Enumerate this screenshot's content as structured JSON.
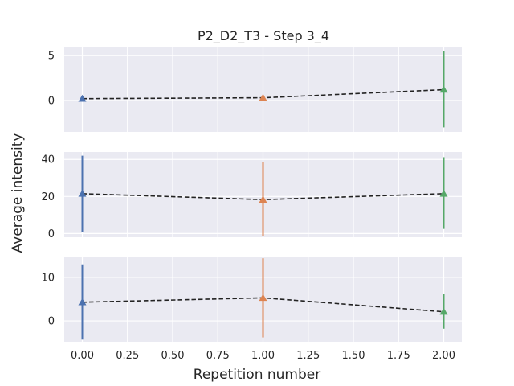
{
  "chart_data": {
    "type": "line",
    "title": "P2_D2_T3 - Step 3_4",
    "xlabel": "Repetition number",
    "ylabel": "Average intensity",
    "xlim": [
      -0.1,
      2.1
    ],
    "x_ticks": [
      "0.00",
      "0.25",
      "0.50",
      "0.75",
      "1.00",
      "1.25",
      "1.50",
      "1.75",
      "2.00"
    ],
    "x_tick_values": [
      0,
      0.25,
      0.5,
      0.75,
      1.0,
      1.25,
      1.5,
      1.75,
      2.0
    ],
    "colors": [
      "#4c72b0",
      "#dd8452",
      "#55a868"
    ],
    "line_style": "black dashed",
    "marker": "triangle-up",
    "grid": true,
    "panels": [
      {
        "ylim": [
          -3.5,
          6
        ],
        "y_ticks": [
          0,
          5
        ],
        "x": [
          0,
          1,
          2
        ],
        "y": [
          0.2,
          0.3,
          1.2
        ],
        "err_low": [
          0.1,
          0.0,
          -3.0
        ],
        "err_high": [
          0.3,
          0.6,
          5.5
        ]
      },
      {
        "ylim": [
          -2,
          44
        ],
        "y_ticks": [
          0,
          20,
          40
        ],
        "x": [
          0,
          1,
          2
        ],
        "y": [
          21.5,
          18.3,
          21.5
        ],
        "err_low": [
          1.0,
          -1.5,
          2.5
        ],
        "err_high": [
          42,
          38.5,
          41.2
        ]
      },
      {
        "ylim": [
          -4.8,
          14.8
        ],
        "y_ticks": [
          0,
          10
        ],
        "x": [
          0,
          1,
          2
        ],
        "y": [
          4.3,
          5.3,
          2.1
        ],
        "err_low": [
          -4.3,
          -3.8,
          -1.8
        ],
        "err_high": [
          13.0,
          14.4,
          6.2
        ]
      }
    ]
  }
}
